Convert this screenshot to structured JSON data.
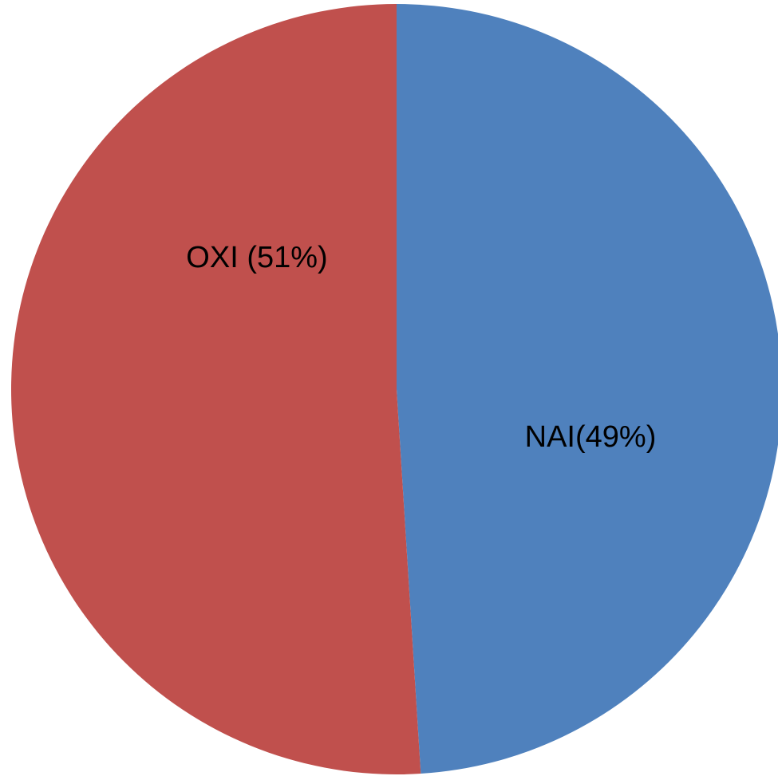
{
  "chart_data": {
    "type": "pie",
    "categories": [
      "NAI(49%)",
      "OXI (51%)"
    ],
    "values": [
      49,
      51
    ],
    "colors": [
      "#4f81bd",
      "#c0504d"
    ]
  }
}
